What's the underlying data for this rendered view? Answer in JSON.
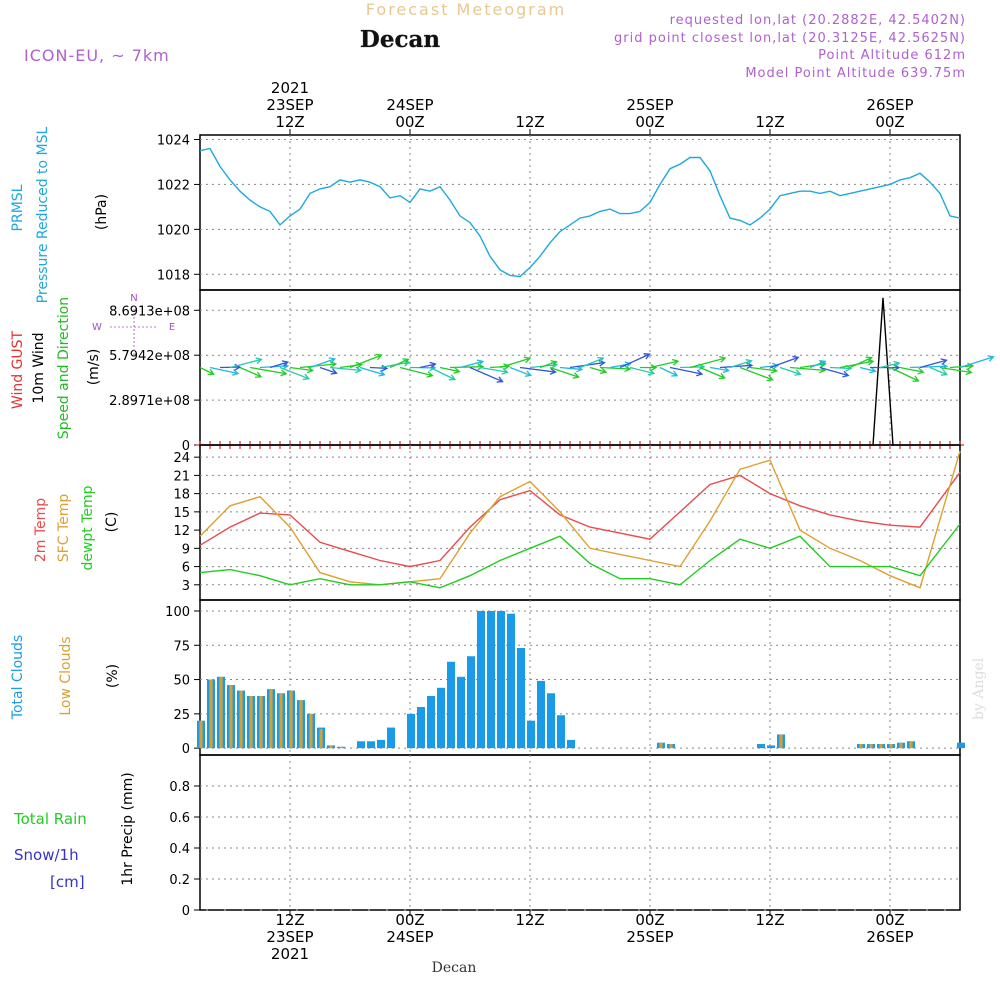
{
  "header": {
    "suptitle": "Forecast Meteogram",
    "location": "Decan",
    "model": "ICON-EU, ~ 7km",
    "requested": "requested lon,lat (20.2882E, 42.5402N)",
    "grid_point": "grid point closest lon,lat (20.3125E, 42.5625N)",
    "point_altitude": "Point Altitude 612m",
    "model_altitude": "Model Point Altitude 639.75m"
  },
  "time_axis": {
    "top_labels": [
      {
        "x": 9,
        "lines": [
          "2021",
          "23SEP",
          "12Z"
        ]
      },
      {
        "x": 21,
        "lines": [
          "24SEP",
          "00Z"
        ]
      },
      {
        "x": 33,
        "lines": [
          "12Z"
        ]
      },
      {
        "x": 45,
        "lines": [
          "25SEP",
          "00Z"
        ]
      },
      {
        "x": 57,
        "lines": [
          "12Z"
        ]
      },
      {
        "x": 69,
        "lines": [
          "26SEP",
          "00Z"
        ]
      }
    ],
    "bottom_labels": [
      {
        "x": 9,
        "lines": [
          "12Z",
          "23SEP",
          "2021"
        ]
      },
      {
        "x": 21,
        "lines": [
          "00Z",
          "24SEP"
        ]
      },
      {
        "x": 33,
        "lines": [
          "12Z"
        ]
      },
      {
        "x": 45,
        "lines": [
          "00Z",
          "25SEP"
        ]
      },
      {
        "x": 57,
        "lines": [
          "12Z"
        ]
      },
      {
        "x": 69,
        "lines": [
          "00Z",
          "26SEP"
        ]
      }
    ],
    "bottom_title": "Decan"
  },
  "watermark": "by Angel",
  "colors": {
    "pressure": "#1fa8e0",
    "temp2m": "#e84c4c",
    "sfc_temp": "#e0a030",
    "dewpt": "#22cc22",
    "gust": "#e83030",
    "wind_label": "#22bb22",
    "total_clouds": "#1a9be8",
    "low_clouds": "#d8a030",
    "rain": "#22cc22",
    "snow": "#3333cc",
    "purple": "#a050d0"
  },
  "chart_data": [
    {
      "type": "line",
      "panel": "pressure",
      "ylabels": [
        "PRMSL",
        "Pressure Reduced to MSL",
        "(hPa)"
      ],
      "x_unit": "hours since 2021-09-23 03Z",
      "ylim": [
        1017.3,
        1024.2
      ],
      "yticks": [
        1018,
        1020,
        1022,
        1024
      ],
      "series": [
        {
          "name": "PRMSL",
          "x": [
            0,
            1,
            2,
            3,
            4,
            5,
            6,
            7,
            8,
            9,
            10,
            11,
            12,
            13,
            14,
            15,
            16,
            17,
            18,
            19,
            20,
            21,
            22,
            23,
            24,
            25,
            26,
            27,
            28,
            29,
            30,
            31,
            32,
            33,
            34,
            35,
            36,
            37,
            38,
            39,
            40,
            41,
            42,
            43,
            44,
            45,
            46,
            47,
            48,
            49,
            50,
            51,
            52,
            53,
            54,
            55,
            56,
            57,
            58,
            59,
            60,
            61,
            62,
            63,
            64,
            65,
            66,
            67,
            68,
            69,
            70,
            71,
            72,
            73,
            74,
            75,
            76
          ],
          "values": [
            1023.5,
            1023.6,
            1022.8,
            1022.2,
            1021.7,
            1021.3,
            1021.0,
            1020.8,
            1020.2,
            1020.6,
            1020.9,
            1021.6,
            1021.8,
            1021.9,
            1022.2,
            1022.1,
            1022.2,
            1022.1,
            1021.9,
            1021.4,
            1021.5,
            1021.2,
            1021.8,
            1021.7,
            1021.9,
            1021.3,
            1020.6,
            1020.3,
            1019.7,
            1018.8,
            1018.2,
            1017.95,
            1017.9,
            1018.3,
            1018.8,
            1019.4,
            1019.9,
            1020.2,
            1020.5,
            1020.6,
            1020.8,
            1020.9,
            1020.7,
            1020.7,
            1020.8,
            1021.2,
            1022.0,
            1022.7,
            1022.9,
            1023.2,
            1023.2,
            1022.6,
            1021.5,
            1020.5,
            1020.4,
            1020.2,
            1020.5,
            1020.9,
            1021.5,
            1021.6,
            1021.7,
            1021.7,
            1021.6,
            1021.7,
            1021.5,
            1021.6,
            1021.7,
            1021.8,
            1021.9,
            1022.0,
            1022.2,
            1022.3,
            1022.5,
            1022.1,
            1021.6,
            1020.6,
            1020.5
          ]
        }
      ]
    },
    {
      "type": "scatter",
      "panel": "wind",
      "ylabels": [
        "Wind GUST",
        "10m Wind",
        "Speed and Direction",
        "(m/s)"
      ],
      "ylim": [
        0,
        1000000000.0
      ],
      "ytick_labels": [
        "0",
        "2.8971e+08",
        "5.7942e+08",
        "8.6913e+08"
      ],
      "yticks": [
        0,
        289710000,
        579420000,
        869130000
      ],
      "compass": {
        "n": "N",
        "w": "W",
        "e": "E"
      },
      "gust_spike": {
        "x": [
          67.3,
          68.3,
          69.3
        ],
        "values": [
          0,
          950000000.0,
          0
        ]
      },
      "gust_markers_y": 0,
      "wind_barb_y": 500000000.0
    },
    {
      "type": "line",
      "panel": "temperature",
      "ylabels": [
        "2m Temp",
        "SFC Temp",
        "dewpt Temp",
        "(C)"
      ],
      "ylim": [
        0.5,
        26
      ],
      "yticks": [
        3,
        6,
        9,
        12,
        15,
        18,
        21,
        24
      ],
      "series": [
        {
          "name": "2m Temp",
          "x": [
            0,
            3,
            6,
            9,
            12,
            15,
            18,
            21,
            24,
            27,
            30,
            33,
            36,
            39,
            42,
            45,
            48,
            51,
            54,
            57,
            60,
            63,
            66,
            69,
            72,
            76
          ],
          "values": [
            9.5,
            12.5,
            14.8,
            14.5,
            10,
            8.5,
            7,
            6,
            7,
            12.5,
            17,
            18.5,
            14.5,
            12.5,
            11.5,
            10.5,
            15,
            19.5,
            21,
            18,
            16,
            14.5,
            13.5,
            12.8,
            12.5,
            21.5
          ]
        },
        {
          "name": "SFC Temp",
          "x": [
            0,
            3,
            6,
            9,
            12,
            15,
            18,
            21,
            24,
            27,
            30,
            33,
            36,
            39,
            42,
            45,
            48,
            51,
            54,
            57,
            60,
            63,
            66,
            69,
            72,
            76
          ],
          "values": [
            11,
            16,
            17.5,
            12.5,
            5,
            3.5,
            3,
            3.5,
            4,
            11.5,
            17.5,
            20,
            15,
            9,
            8,
            7,
            6,
            13.5,
            22,
            23.5,
            12,
            9,
            7,
            4.5,
            2.5,
            25
          ]
        },
        {
          "name": "dewpt Temp",
          "x": [
            0,
            3,
            6,
            9,
            12,
            15,
            18,
            21,
            24,
            27,
            30,
            33,
            36,
            39,
            42,
            45,
            48,
            51,
            54,
            57,
            60,
            63,
            66,
            69,
            72,
            76
          ],
          "values": [
            5,
            5.5,
            4.5,
            3,
            4,
            3,
            3,
            3.5,
            2.5,
            4.5,
            7,
            9,
            11,
            6.5,
            4,
            4,
            3,
            7,
            10.5,
            9,
            11,
            6,
            6,
            6,
            4.5,
            13
          ]
        }
      ]
    },
    {
      "type": "bar",
      "panel": "clouds",
      "ylabels": [
        "Total Clouds",
        "Low Clouds",
        "(%)"
      ],
      "ylim": [
        -5,
        108
      ],
      "yticks": [
        0,
        25,
        50,
        75,
        100
      ],
      "x": [
        0,
        1,
        2,
        3,
        4,
        5,
        6,
        7,
        8,
        9,
        10,
        11,
        12,
        13,
        14,
        15,
        16,
        17,
        18,
        19,
        20,
        21,
        22,
        23,
        24,
        25,
        26,
        27,
        28,
        29,
        30,
        31,
        32,
        33,
        34,
        35,
        36,
        37,
        38,
        39,
        40,
        41,
        42,
        43,
        44,
        45,
        46,
        47,
        48,
        49,
        50,
        51,
        52,
        53,
        54,
        55,
        56,
        57,
        58,
        59,
        60,
        61,
        62,
        63,
        64,
        65,
        66,
        67,
        68,
        69,
        70,
        71,
        72,
        73,
        74,
        75,
        76
      ],
      "series": [
        {
          "name": "Total Clouds",
          "values": [
            20,
            50,
            52,
            46,
            42,
            38,
            38,
            43,
            40,
            42,
            35,
            25,
            15,
            2,
            1,
            0,
            5,
            5,
            6,
            15,
            0,
            25,
            30,
            38,
            44,
            63,
            52,
            67,
            100,
            100,
            100,
            98,
            73,
            20,
            49,
            40,
            24,
            6,
            0,
            0,
            0,
            0,
            0,
            0,
            0,
            0,
            4,
            3,
            0,
            0,
            0,
            0,
            0,
            0,
            0,
            0,
            3,
            2,
            10,
            0,
            0,
            0,
            0,
            0,
            0,
            0,
            3,
            3,
            3,
            3,
            4,
            5,
            0,
            0,
            0,
            0,
            4
          ]
        },
        {
          "name": "Low Clouds",
          "values": [
            20,
            50,
            52,
            46,
            42,
            38,
            38,
            43,
            40,
            42,
            35,
            25,
            14,
            2,
            1,
            0,
            0,
            0,
            0,
            0,
            0,
            0,
            0,
            0,
            0,
            0,
            0,
            0,
            0,
            0,
            0,
            0,
            0,
            0,
            0,
            0,
            0,
            0,
            0,
            0,
            0,
            0,
            0,
            0,
            0,
            0,
            4,
            3,
            0,
            0,
            0,
            0,
            0,
            0,
            0,
            0,
            0,
            0,
            10,
            0,
            0,
            0,
            0,
            0,
            0,
            0,
            3,
            3,
            3,
            3,
            4,
            5,
            0,
            0,
            0,
            0,
            0
          ]
        }
      ]
    },
    {
      "type": "bar",
      "panel": "precip",
      "ylabels": [
        "1hr Precip (mm)"
      ],
      "legend_lines": [
        "Total  Rain",
        "Snow/1h",
        "[cm]"
      ],
      "ylim": [
        0,
        1.0
      ],
      "yticks": [
        0,
        0.2,
        0.4,
        0.6,
        0.8
      ],
      "ytick_labels": [
        "0",
        "0.2",
        "0.4",
        "0.6",
        "0.8"
      ],
      "series": [
        {
          "name": "Total Rain",
          "values": []
        },
        {
          "name": "Snow/1h",
          "values": []
        }
      ]
    }
  ]
}
